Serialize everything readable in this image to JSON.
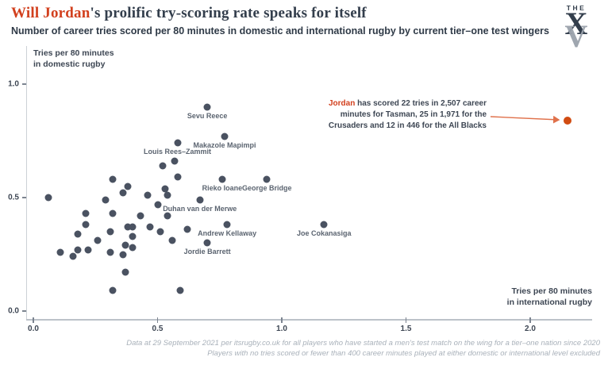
{
  "header": {
    "title_highlight": "Will Jordan",
    "title_rest": "'s prolific try-scoring rate speaks for itself",
    "subtitle": "Number of career tries scored per 80 minutes in domestic and international rugby by current tier–one test wingers",
    "logo": {
      "the": "THE",
      "x": "X",
      "v": "V"
    }
  },
  "colors": {
    "accent": "#d2401e",
    "dot": "#4a5261",
    "jordan_dot": "#d14c12",
    "arrow": "#e0714b",
    "axis_gray": "#c6ccd2",
    "text_dark": "#333e4c",
    "point_label_gray": "#5b6470",
    "footer_gray": "#a9b1ba"
  },
  "axis_labels": {
    "y_line1": "Tries per 80 minutes",
    "y_line2": "in domestic rugby",
    "x_line1": "Tries per 80 minutes",
    "x_line2": "in international rugby"
  },
  "annotation": {
    "line1_highlight": "Jordan",
    "line1_rest": " has scored 22 tries in 2,507 career",
    "line2": "minutes for Tasman, 25 in 1,971 for the",
    "line3": "Crusaders and 12 in 446 for the All Blacks"
  },
  "footer": {
    "line1": "Data at 29 September 2021 per itsrugby.co.uk for all players who have started a men's test match on the wing for a tier–one nation since 2020",
    "line2": "Players with no tries scored or fewer than 400 career minutes played at either domestic or international level excluded"
  },
  "chart_data": {
    "type": "scatter",
    "title": "Will Jordan's prolific try-scoring rate speaks for itself",
    "subtitle": "Number of career tries scored per 80 minutes in domestic and international rugby by current tier–one test wingers",
    "xlabel": "Tries per 80 minutes in international rugby",
    "ylabel": "Tries per 80 minutes in domestic rugby",
    "xlim": [
      0,
      2.25
    ],
    "ylim": [
      0,
      1.1
    ],
    "x_ticks": [
      0.0,
      0.5,
      1.0,
      1.5,
      2.0
    ],
    "y_ticks": [
      0.0,
      0.5,
      1.0
    ],
    "grid": false,
    "legend": "none",
    "highlight_point": {
      "name": "Will Jordan",
      "x": 2.15,
      "y": 0.84
    },
    "labeled_points": [
      {
        "name": "Sevu Reece",
        "x": 0.7,
        "y": 0.9
      },
      {
        "name": "Makazole Mapimpi",
        "x": 0.77,
        "y": 0.77
      },
      {
        "name": "Louis Rees–Zammit",
        "x": 0.58,
        "y": 0.74
      },
      {
        "name": "Rieko Ioane",
        "x": 0.76,
        "y": 0.58
      },
      {
        "name": "George Bridge",
        "x": 0.94,
        "y": 0.58
      },
      {
        "name": "Duhan van der Merwe",
        "x": 0.67,
        "y": 0.49
      },
      {
        "name": "Andrew Kellaway",
        "x": 0.78,
        "y": 0.38
      },
      {
        "name": "Jordie Barrett",
        "x": 0.7,
        "y": 0.3
      },
      {
        "name": "Joe Cokanasiga",
        "x": 1.17,
        "y": 0.38
      }
    ],
    "unlabeled_points": [
      [
        0.06,
        0.5
      ],
      [
        0.11,
        0.26
      ],
      [
        0.16,
        0.24
      ],
      [
        0.18,
        0.34
      ],
      [
        0.18,
        0.27
      ],
      [
        0.22,
        0.27
      ],
      [
        0.21,
        0.43
      ],
      [
        0.21,
        0.38
      ],
      [
        0.26,
        0.31
      ],
      [
        0.29,
        0.49
      ],
      [
        0.31,
        0.35
      ],
      [
        0.31,
        0.26
      ],
      [
        0.32,
        0.58
      ],
      [
        0.32,
        0.43
      ],
      [
        0.32,
        0.09
      ],
      [
        0.36,
        0.25
      ],
      [
        0.36,
        0.52
      ],
      [
        0.37,
        0.17
      ],
      [
        0.37,
        0.29
      ],
      [
        0.38,
        0.55
      ],
      [
        0.38,
        0.37
      ],
      [
        0.4,
        0.37
      ],
      [
        0.4,
        0.28
      ],
      [
        0.4,
        0.33
      ],
      [
        0.43,
        0.42
      ],
      [
        0.46,
        0.51
      ],
      [
        0.47,
        0.37
      ],
      [
        0.5,
        0.47
      ],
      [
        0.51,
        0.35
      ],
      [
        0.52,
        0.64
      ],
      [
        0.53,
        0.54
      ],
      [
        0.54,
        0.51
      ],
      [
        0.54,
        0.42
      ],
      [
        0.56,
        0.31
      ],
      [
        0.57,
        0.66
      ],
      [
        0.58,
        0.59
      ],
      [
        0.59,
        0.09
      ],
      [
        0.62,
        0.36
      ]
    ]
  }
}
